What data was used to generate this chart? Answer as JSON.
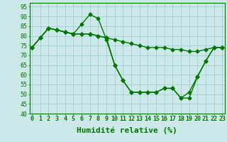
{
  "title": "",
  "xlabel": "Humidité relative (%)",
  "ylabel": "",
  "xlim": [
    -0.3,
    23.3
  ],
  "ylim": [
    40,
    97
  ],
  "yticks": [
    40,
    45,
    50,
    55,
    60,
    65,
    70,
    75,
    80,
    85,
    90,
    95
  ],
  "xticks": [
    0,
    1,
    2,
    3,
    4,
    5,
    6,
    7,
    8,
    9,
    10,
    11,
    12,
    13,
    14,
    15,
    16,
    17,
    18,
    19,
    20,
    21,
    22,
    23
  ],
  "background_color": "#cce8e8",
  "grid_color": "#99cccc",
  "line_color": "#007700",
  "line1_y": [
    74,
    79,
    84,
    83,
    82,
    81,
    86,
    91,
    89,
    78,
    65,
    57,
    51,
    51,
    51,
    51,
    53,
    53,
    48,
    48,
    59,
    67,
    74,
    74
  ],
  "line2_y": [
    74,
    79,
    84,
    83,
    82,
    81,
    81,
    81,
    80,
    79,
    78,
    77,
    76,
    75,
    74,
    74,
    74,
    73,
    73,
    72,
    72,
    73,
    74,
    74
  ],
  "line3_y": [
    74,
    79,
    84,
    83,
    82,
    81,
    81,
    81,
    80,
    79,
    65,
    57,
    51,
    51,
    51,
    51,
    53,
    53,
    48,
    51,
    59,
    67,
    74,
    74
  ],
  "marker": "D",
  "marker_size": 2.5,
  "line_width": 1.0,
  "tick_fontsize": 6,
  "xlabel_fontsize": 8
}
